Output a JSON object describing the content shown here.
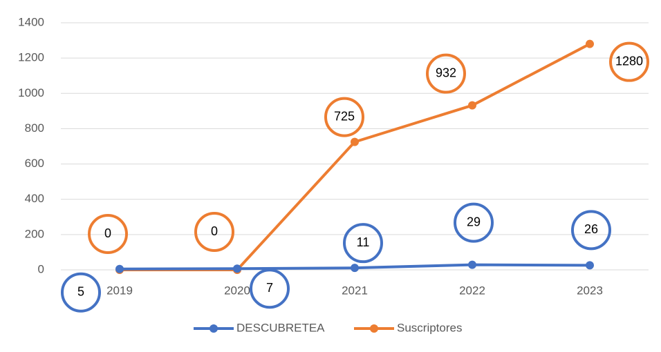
{
  "chart_data": {
    "type": "line",
    "categories": [
      "2019",
      "2020",
      "2021",
      "2022",
      "2023"
    ],
    "series": [
      {
        "name": "DESCUBRETEA",
        "color": "#4472c4",
        "values": [
          5,
          7,
          11,
          29,
          26
        ]
      },
      {
        "name": "Suscriptores",
        "color": "#ed7d31",
        "values": [
          0,
          0,
          725,
          932,
          1280
        ]
      }
    ],
    "ylim": [
      0,
      1400
    ],
    "yticks": [
      0,
      200,
      400,
      600,
      800,
      1000,
      1200,
      1400
    ],
    "grid": true,
    "legend": "bottom"
  }
}
